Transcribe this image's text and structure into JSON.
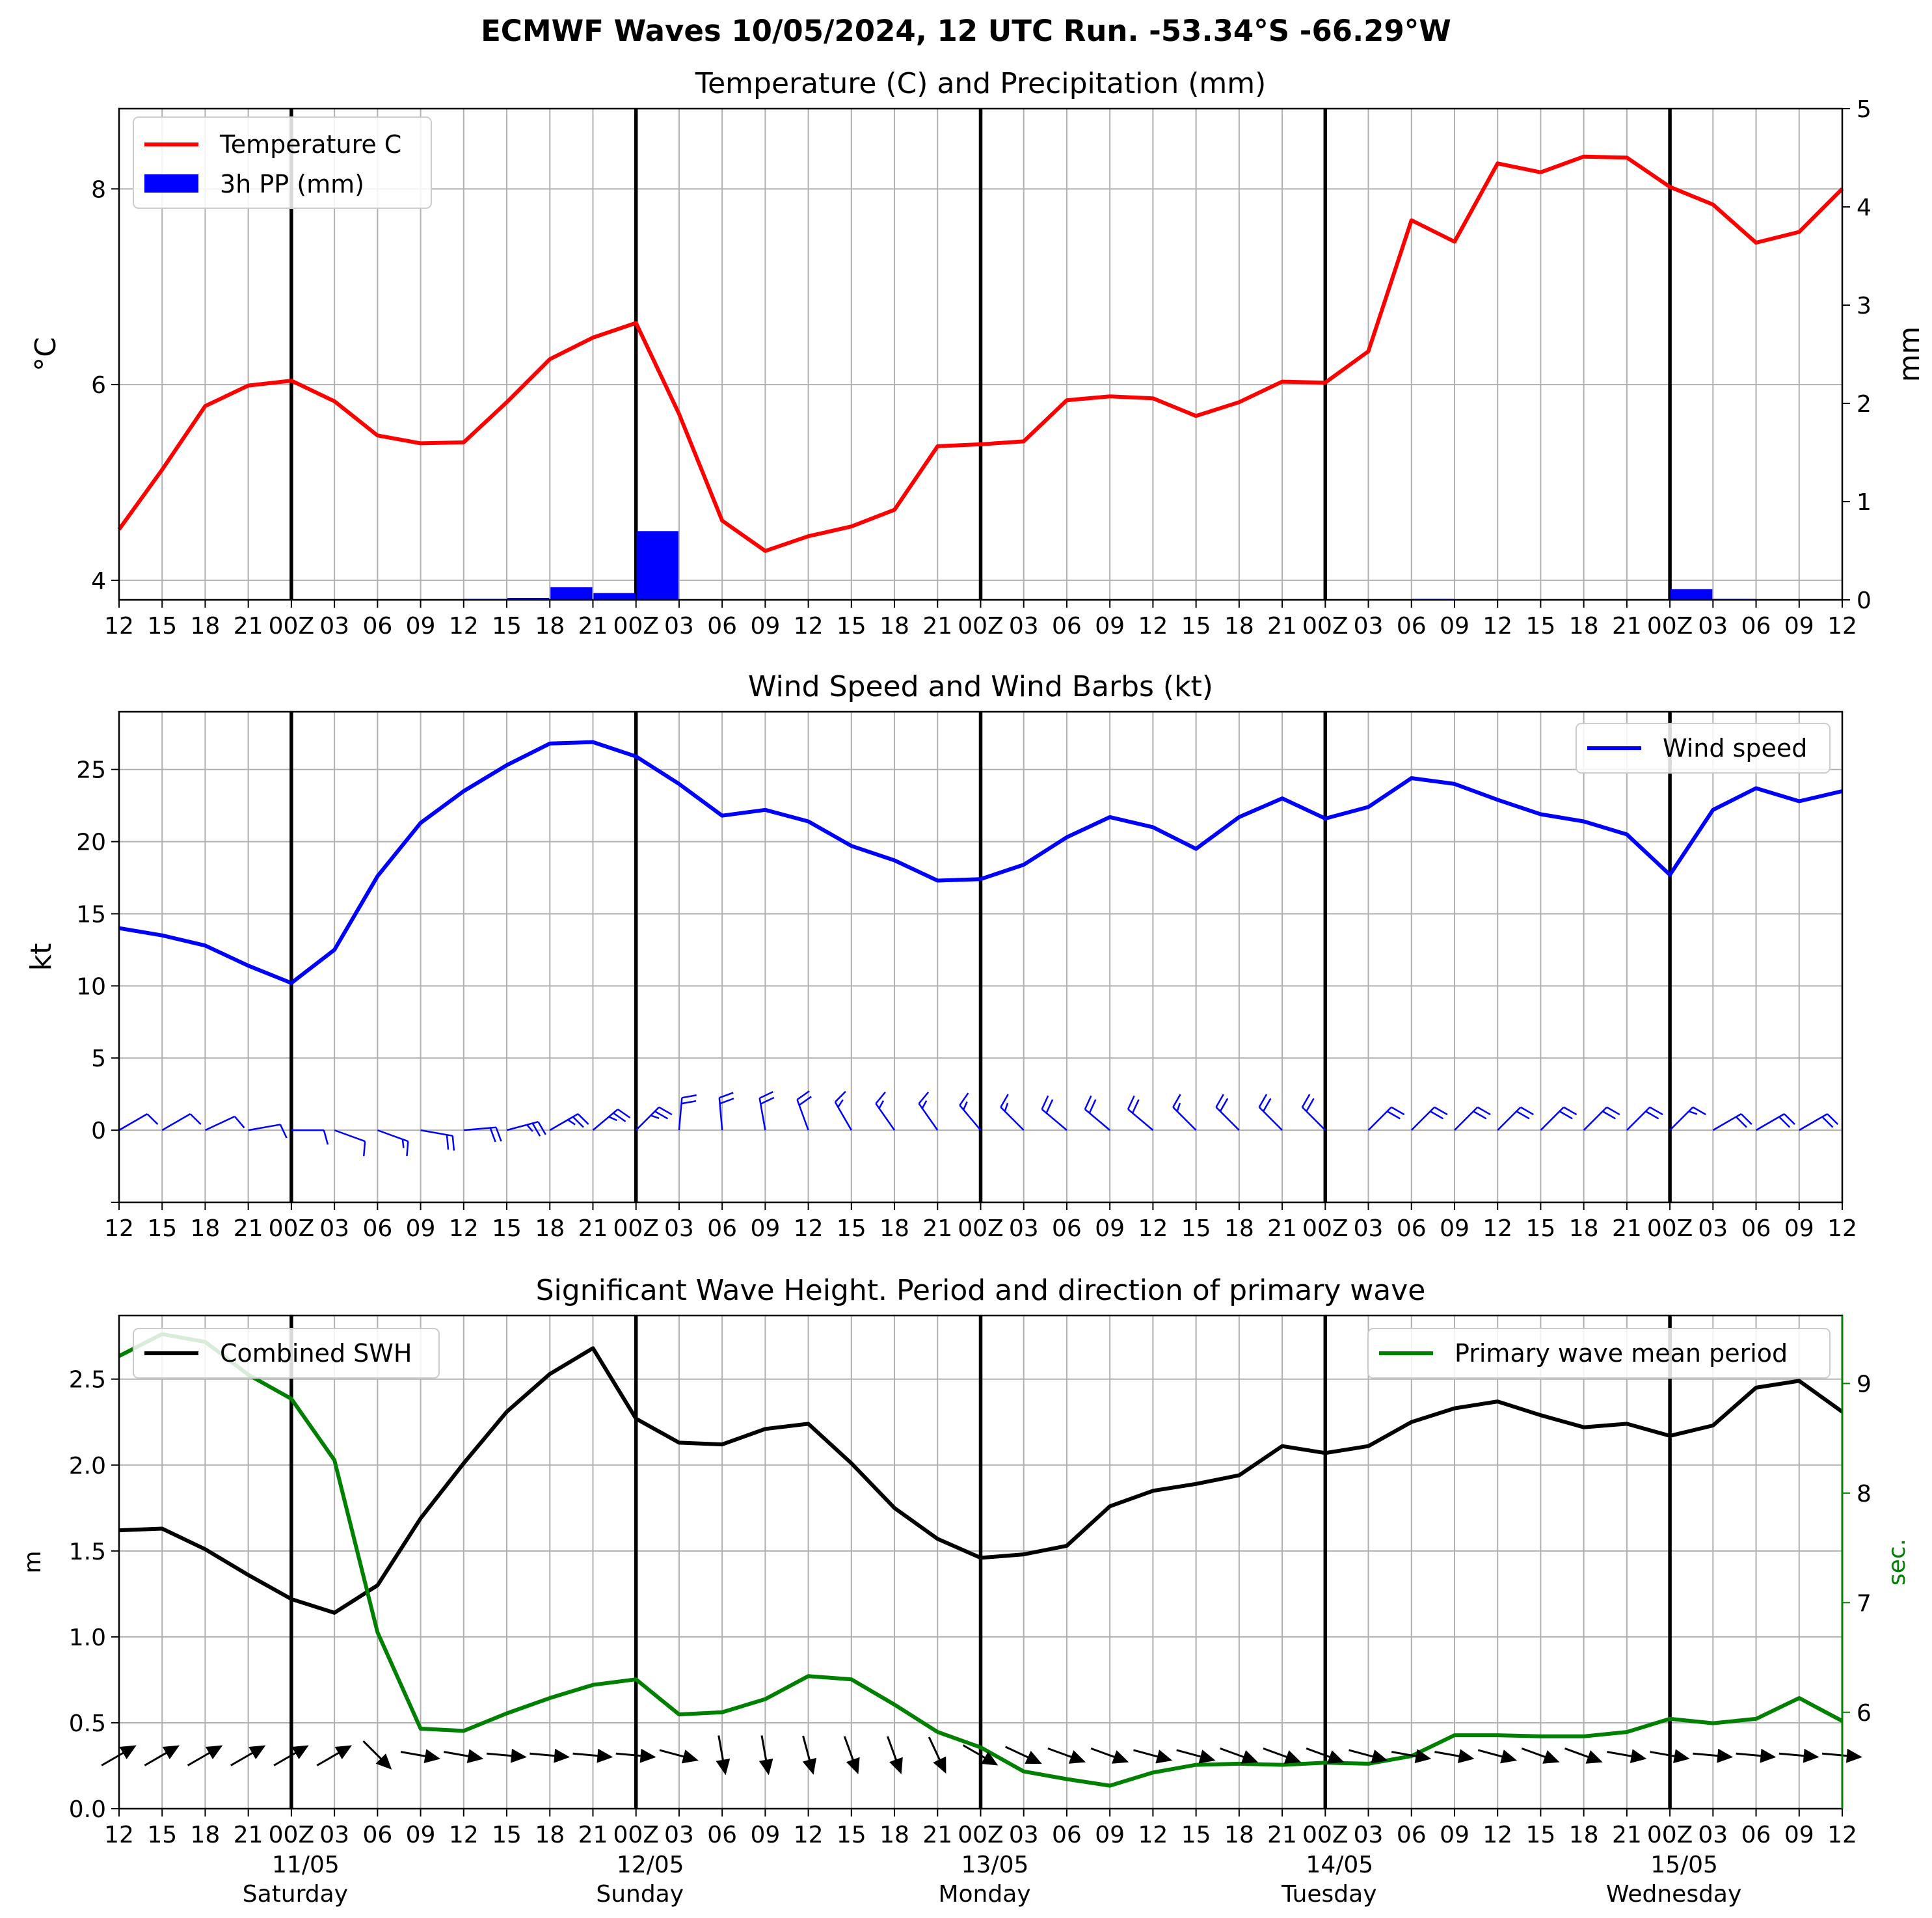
{
  "suptitle": "ECMWF Waves 10/05/2024, 12 UTC Run. -53.34°S -66.29°W",
  "colors": {
    "temperature": "#ff0000",
    "precip": "#0000ff",
    "wind": "#0000ff",
    "swh": "#000000",
    "period": "#008000",
    "grid": "#b0b0b0",
    "day_line": "#000000"
  },
  "x_axis": {
    "tick_labels": [
      "12",
      "15",
      "18",
      "21",
      "00Z",
      "03",
      "06",
      "09",
      "12",
      "15",
      "18",
      "21",
      "00Z",
      "03",
      "06",
      "09",
      "12",
      "15",
      "18",
      "21",
      "00Z",
      "03",
      "06",
      "09",
      "12",
      "15",
      "18",
      "21",
      "00Z",
      "03",
      "06",
      "09",
      "12",
      "15",
      "18",
      "21",
      "00Z",
      "03",
      "06",
      "09",
      "12"
    ],
    "day_boundaries": [
      4,
      12,
      20,
      28,
      36
    ],
    "dates": [
      "11/05",
      "12/05",
      "13/05",
      "14/05",
      "15/05"
    ],
    "weekdays": [
      "Saturday",
      "Sunday",
      "Monday",
      "Tuesday",
      "Wednesday"
    ]
  },
  "chart_data": [
    {
      "type": "line",
      "title": "Temperature (C) and Precipitation (mm)",
      "ylabel": "°C",
      "ylabel_right": "mm",
      "ylim": [
        3.8,
        8.82
      ],
      "yticks": [
        4,
        6,
        8
      ],
      "ylim_right": [
        0,
        5
      ],
      "yticks_right": [
        0,
        1,
        2,
        3,
        4,
        5
      ],
      "legend": {
        "placement": "top-left",
        "entries": [
          "Temperature C",
          "3h PP (mm)"
        ]
      },
      "series": [
        {
          "name": "Temperature C",
          "kind": "line",
          "axis": "left",
          "values": [
            4.52,
            5.13,
            5.78,
            5.99,
            6.04,
            5.83,
            5.48,
            5.4,
            5.41,
            5.82,
            6.26,
            6.48,
            6.63,
            5.7,
            4.61,
            4.3,
            4.45,
            4.55,
            4.72,
            5.37,
            5.39,
            5.42,
            5.84,
            5.88,
            5.86,
            5.68,
            5.82,
            6.03,
            6.02,
            6.34,
            7.68,
            7.46,
            8.26,
            8.17,
            8.33,
            8.32,
            8.02,
            7.84,
            7.45,
            7.56,
            8.0
          ]
        },
        {
          "name": "3h PP (mm)",
          "kind": "bar",
          "axis": "right",
          "values": [
            0,
            0,
            0,
            0,
            0,
            0,
            0,
            0,
            0.01,
            0.02,
            0.13,
            0.07,
            0.7,
            0,
            0,
            0,
            0,
            0,
            0,
            0,
            0,
            0,
            0,
            0,
            0,
            0,
            0,
            0,
            0,
            0,
            0.01,
            0,
            0,
            0,
            0,
            0,
            0.11,
            0.01,
            0,
            0,
            0
          ]
        }
      ]
    },
    {
      "type": "line",
      "title": "Wind Speed and Wind Barbs (kt)",
      "ylabel": "kt",
      "ylim": [
        -5,
        29
      ],
      "yticks": [
        0,
        5,
        10,
        15,
        20,
        25
      ],
      "legend": {
        "placement": "top-right",
        "entries": [
          "Wind speed"
        ]
      },
      "series": [
        {
          "name": "Wind speed",
          "kind": "line",
          "values": [
            14.0,
            13.5,
            12.8,
            11.4,
            10.2,
            12.5,
            17.6,
            21.3,
            23.5,
            25.3,
            26.8,
            26.9,
            25.9,
            24.0,
            21.8,
            22.2,
            21.4,
            19.7,
            18.7,
            17.3,
            17.4,
            18.4,
            20.3,
            21.7,
            21.0,
            19.5,
            21.7,
            23.0,
            21.6,
            22.4,
            24.4,
            24.0,
            22.9,
            21.9,
            21.4,
            20.5,
            17.7,
            22.2,
            23.7,
            22.8,
            23.5
          ]
        }
      ],
      "barb_directions_deg": [
        240,
        240,
        245,
        260,
        270,
        290,
        290,
        280,
        265,
        255,
        240,
        230,
        225,
        185,
        175,
        170,
        160,
        150,
        145,
        145,
        140,
        135,
        130,
        130,
        130,
        135,
        135,
        135,
        135,
        225,
        225,
        225,
        225,
        225,
        225,
        225,
        225,
        240,
        240,
        240,
        230
      ]
    },
    {
      "type": "line",
      "title": "Significant Wave Height. Period and direction of primary wave",
      "ylabel": "m",
      "ylabel_right": "sec.",
      "ylim": [
        0.0,
        2.87
      ],
      "yticks": [
        0.0,
        0.5,
        1.0,
        1.5,
        2.0,
        2.5
      ],
      "ylim_right": [
        5.12,
        9.62
      ],
      "yticks_right": [
        6,
        7,
        8,
        9
      ],
      "legend_left": {
        "placement": "top-left",
        "entries": [
          "Combined SWH"
        ]
      },
      "legend_right": {
        "placement": "top-right",
        "entries": [
          "Primary wave mean period"
        ]
      },
      "series": [
        {
          "name": "Combined SWH",
          "kind": "line",
          "axis": "left",
          "values": [
            1.62,
            1.63,
            1.51,
            1.36,
            1.22,
            1.14,
            1.3,
            1.69,
            2.01,
            2.31,
            2.53,
            2.68,
            2.27,
            2.13,
            2.12,
            2.21,
            2.24,
            2.01,
            1.75,
            1.57,
            1.46,
            1.48,
            1.53,
            1.76,
            1.85,
            1.89,
            1.94,
            2.11,
            2.07,
            2.11,
            2.25,
            2.33,
            2.37,
            2.29,
            2.22,
            2.24,
            2.17,
            2.23,
            2.45,
            2.49,
            2.31
          ]
        },
        {
          "name": "Primary wave mean period",
          "kind": "line",
          "axis": "right",
          "values": [
            9.25,
            9.45,
            9.38,
            9.08,
            8.86,
            8.3,
            6.73,
            5.85,
            5.83,
            5.99,
            6.13,
            6.25,
            6.3,
            5.98,
            6.0,
            6.12,
            6.33,
            6.3,
            6.07,
            5.82,
            5.68,
            5.46,
            5.39,
            5.33,
            5.45,
            5.52,
            5.53,
            5.52,
            5.54,
            5.53,
            5.6,
            5.79,
            5.79,
            5.78,
            5.78,
            5.82,
            5.94,
            5.9,
            5.94,
            6.13,
            5.92
          ]
        }
      ],
      "wave_directions_deg": [
        240,
        240,
        240,
        240,
        240,
        240,
        315,
        280,
        280,
        275,
        275,
        275,
        275,
        285,
        350,
        350,
        345,
        340,
        340,
        335,
        300,
        295,
        290,
        290,
        285,
        285,
        290,
        290,
        290,
        285,
        280,
        280,
        285,
        290,
        290,
        280,
        280,
        275,
        275,
        275,
        275
      ]
    }
  ]
}
